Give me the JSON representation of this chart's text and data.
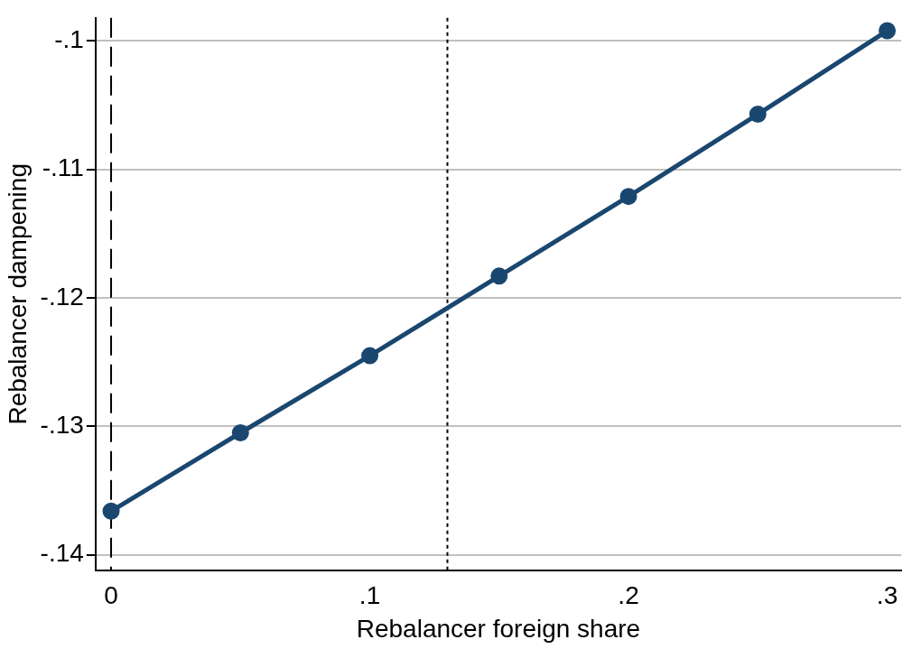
{
  "chart_data": {
    "type": "line",
    "xlabel": "Rebalancer foreign share",
    "ylabel": "Rebalancer dampening",
    "x": [
      0,
      0.05,
      0.1,
      0.15,
      0.2,
      0.25,
      0.3
    ],
    "series": [
      {
        "color": "#1a476f",
        "values": [
          -0.1366,
          -0.1305,
          -0.1245,
          -0.1183,
          -0.1121,
          -0.1057,
          -0.0992
        ]
      }
    ],
    "xlim": [
      -0.006,
      0.3054
    ],
    "ylim": [
      -0.1412,
      -0.0982
    ],
    "xticks": [
      {
        "value": 0,
        "label": "0"
      },
      {
        "value": 0.1,
        "label": ".1"
      },
      {
        "value": 0.2,
        "label": ".2"
      },
      {
        "value": 0.3,
        "label": ".3"
      }
    ],
    "yticks": [
      {
        "value": -0.14,
        "label": "-.14"
      },
      {
        "value": -0.13,
        "label": "-.13"
      },
      {
        "value": -0.12,
        "label": "-.12"
      },
      {
        "value": -0.11,
        "label": "-.11"
      },
      {
        "value": -0.1,
        "label": "-.1"
      }
    ],
    "ref_lines": [
      {
        "axis": "x",
        "value": 0,
        "color": "#000000",
        "line_style": "dashed"
      },
      {
        "axis": "x",
        "value": 0.13,
        "color": "#000000",
        "line_style": "dotted"
      }
    ],
    "grid": "y",
    "legend": false,
    "marker": "circle",
    "line_style": "solid"
  }
}
